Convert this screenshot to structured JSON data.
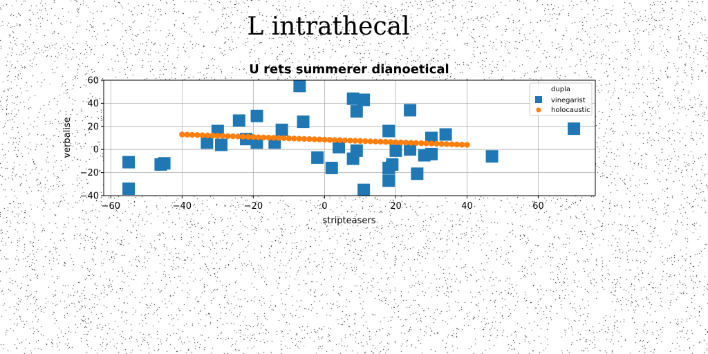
{
  "page_title": "L intrathecal",
  "chart_data": {
    "type": "scatter",
    "title": "U rets summerer dianoetical",
    "xlabel": "stripteasers",
    "ylabel": "verbalise",
    "xlim": [
      -62,
      76
    ],
    "ylim": [
      -40,
      60
    ],
    "xticks": [
      -60,
      -40,
      -20,
      0,
      20,
      40,
      60
    ],
    "yticks": [
      -40,
      -20,
      0,
      20,
      40,
      60
    ],
    "xtick_labels": [
      "−60",
      "−40",
      "−20",
      "0",
      "20",
      "40",
      "60"
    ],
    "ytick_labels": [
      "−40",
      "−20",
      "0",
      "20",
      "40",
      "60"
    ],
    "grid": true,
    "legend": {
      "title": "dupla",
      "position": "top-right"
    },
    "series": [
      {
        "name": "vinegarist",
        "marker": "square",
        "color": "#1f77b4",
        "points": [
          [
            -55,
            -11
          ],
          [
            -55,
            -34
          ],
          [
            -46,
            -13
          ],
          [
            -45,
            -12
          ],
          [
            -33,
            6
          ],
          [
            -30,
            16
          ],
          [
            -29,
            4
          ],
          [
            -24,
            25
          ],
          [
            -22,
            9
          ],
          [
            -19,
            6
          ],
          [
            -19,
            29
          ],
          [
            -14,
            6
          ],
          [
            -12,
            17
          ],
          [
            -7,
            55
          ],
          [
            -6,
            24
          ],
          [
            -2,
            -7
          ],
          [
            2,
            -16
          ],
          [
            4,
            2
          ],
          [
            8,
            -8
          ],
          [
            8,
            44
          ],
          [
            9,
            33
          ],
          [
            9,
            -1
          ],
          [
            11,
            43
          ],
          [
            11,
            -35
          ],
          [
            18,
            16
          ],
          [
            18,
            -16
          ],
          [
            18,
            -27
          ],
          [
            19,
            -13
          ],
          [
            20,
            -1
          ],
          [
            24,
            0
          ],
          [
            24,
            34
          ],
          [
            26,
            -21
          ],
          [
            28,
            -5
          ],
          [
            30,
            10
          ],
          [
            30,
            -4
          ],
          [
            34,
            13
          ],
          [
            47,
            -6
          ],
          [
            70,
            18
          ]
        ]
      },
      {
        "name": "holocaustic",
        "marker": "circle",
        "color": "#ff7f0e",
        "line": {
          "x_from": -40,
          "x_to": 40,
          "y_from": 13,
          "y_to": 4,
          "count": 57
        }
      }
    ]
  }
}
